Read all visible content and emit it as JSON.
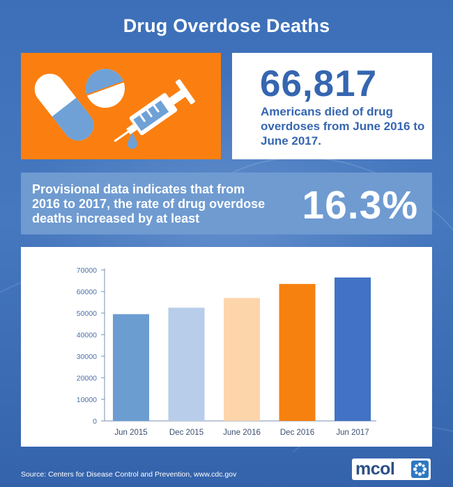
{
  "title": "Drug Overdose Deaths",
  "stat": {
    "number": "66,817",
    "description": "Americans died of drug overdoses from June 2016 to June 2017."
  },
  "band": {
    "text": "Provisional data indicates that from 2016 to 2017, the rate of drug overdose deaths increased by at least",
    "percent": "16.3%"
  },
  "chart_data": {
    "type": "bar",
    "categories": [
      "Jun 2015",
      "Dec 2015",
      "June 2016",
      "Dec 2016",
      "Jun 2017"
    ],
    "values": [
      49500,
      52500,
      57000,
      63500,
      66500
    ],
    "bar_colors": [
      "#6b9dd1",
      "#b7cde9",
      "#fdd5ab",
      "#f7810f",
      "#4272c5"
    ],
    "ylim": [
      0,
      70000
    ],
    "yticks": [
      0,
      10000,
      20000,
      30000,
      40000,
      50000,
      60000,
      70000
    ],
    "ytick_labels": [
      "0",
      "10000",
      "20000",
      "30000",
      "40000",
      "50000",
      "60000",
      "70000"
    ],
    "grid": false,
    "title": "",
    "xlabel": "",
    "ylabel": ""
  },
  "source": "Source: Centers for Disease Control and Prevention, www.cdc.gov",
  "logo": {
    "text": "mcol"
  },
  "icons": [
    "capsule-icon",
    "pill-tablet-icon",
    "syringe-icon",
    "logo-mark-icon"
  ],
  "colors": {
    "background": "#3c6fb8",
    "orange": "#fa7f10",
    "brand_blue": "#3566b0",
    "band": "#6f9bd1",
    "tick_text": "#4b6fa8"
  }
}
